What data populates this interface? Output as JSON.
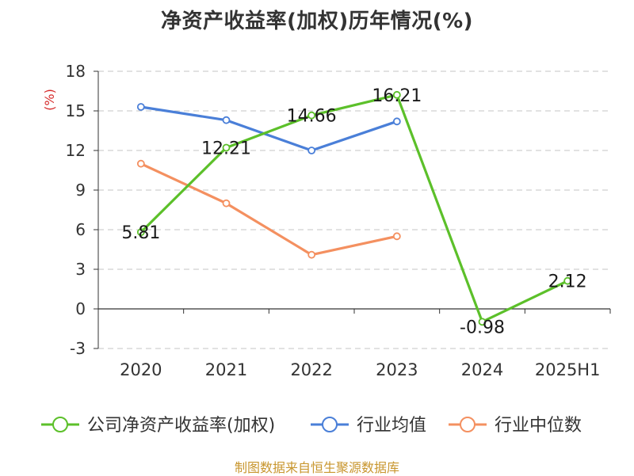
{
  "chart_data": {
    "type": "line",
    "title": "净资产收益率(加权)历年情况(%)",
    "ylabel": "(%)",
    "categories": [
      "2020",
      "2021",
      "2022",
      "2023",
      "2024",
      "2025H1"
    ],
    "ylim": [
      -3,
      18
    ],
    "yticks": [
      18,
      15,
      12,
      9,
      6,
      3,
      0,
      -3
    ],
    "grid": "horizontal-dashed",
    "legend_position": "bottom",
    "series": [
      {
        "name": "公司净资产收益率(加权)",
        "color": "#5cc02a",
        "values": [
          5.81,
          12.21,
          14.66,
          16.21,
          -0.98,
          2.12
        ],
        "labels": [
          "5.81",
          "12.21",
          "14.66",
          "16.21",
          "-0.98",
          "2.12"
        ]
      },
      {
        "name": "行业均值",
        "color": "#4a7fd8",
        "values": [
          15.3,
          14.3,
          12.0,
          14.2,
          null,
          null
        ]
      },
      {
        "name": "行业中位数",
        "color": "#f49060",
        "values": [
          11.0,
          8.0,
          4.1,
          5.5,
          null,
          null
        ]
      }
    ],
    "source": "制图数据来自恒生聚源数据库"
  }
}
